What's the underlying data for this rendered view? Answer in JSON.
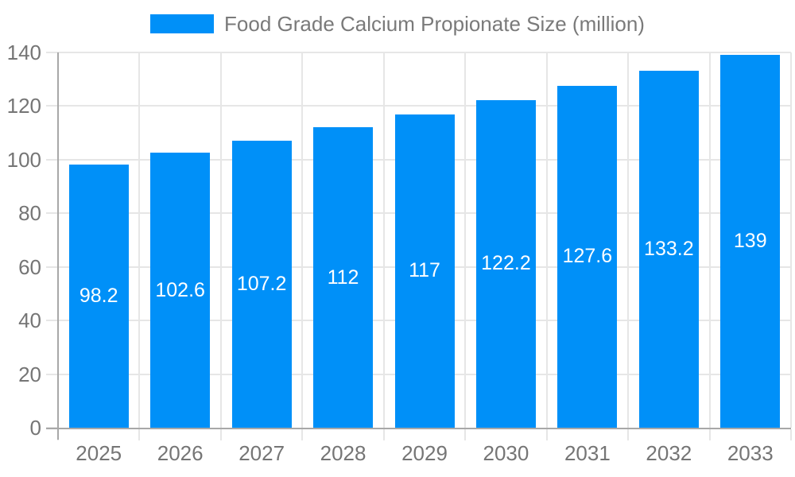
{
  "legend": {
    "label": "Food Grade Calcium Propionate Size (million)"
  },
  "colors": {
    "bar": "#0090f8",
    "bar_label": "#ffffff",
    "axis_line": "#a8a8a8",
    "grid": "#e6e6e6",
    "axis_text": "#757575",
    "legend_text": "#7a7a7a",
    "background": "#ffffff"
  },
  "chart_data": {
    "type": "bar",
    "title": "Food Grade Calcium Propionate Size (million)",
    "categories": [
      "2025",
      "2026",
      "2027",
      "2028",
      "2029",
      "2030",
      "2031",
      "2032",
      "2033"
    ],
    "values": [
      98.2,
      102.6,
      107.2,
      112,
      117,
      122.2,
      127.6,
      133.2,
      139
    ],
    "value_labels": [
      "98.2",
      "102.6",
      "107.2",
      "112",
      "117",
      "122.2",
      "127.6",
      "133.2",
      "139"
    ],
    "xlabel": "",
    "ylabel": "",
    "ylim": [
      0,
      140
    ],
    "yticks": [
      0,
      20,
      40,
      60,
      80,
      100,
      120,
      140
    ],
    "grid": true,
    "legend_position": "top",
    "value_label_position": "center-inside",
    "series": [
      {
        "name": "Food Grade Calcium Propionate Size (million)",
        "values": [
          98.2,
          102.6,
          107.2,
          112,
          117,
          122.2,
          127.6,
          133.2,
          139
        ]
      }
    ]
  }
}
